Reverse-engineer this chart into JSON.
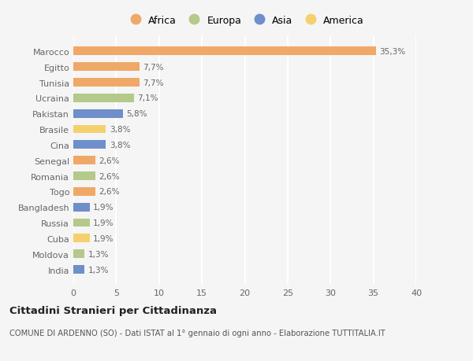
{
  "countries": [
    "Marocco",
    "Egitto",
    "Tunisia",
    "Ucraina",
    "Pakistan",
    "Brasile",
    "Cina",
    "Senegal",
    "Romania",
    "Togo",
    "Bangladesh",
    "Russia",
    "Cuba",
    "Moldova",
    "India"
  ],
  "values": [
    35.3,
    7.7,
    7.7,
    7.1,
    5.8,
    3.8,
    3.8,
    2.6,
    2.6,
    2.6,
    1.9,
    1.9,
    1.9,
    1.3,
    1.3
  ],
  "labels": [
    "35,3%",
    "7,7%",
    "7,7%",
    "7,1%",
    "5,8%",
    "3,8%",
    "3,8%",
    "2,6%",
    "2,6%",
    "2,6%",
    "1,9%",
    "1,9%",
    "1,9%",
    "1,3%",
    "1,3%"
  ],
  "continents": [
    "Africa",
    "Africa",
    "Africa",
    "Europa",
    "Asia",
    "America",
    "Asia",
    "Africa",
    "Europa",
    "Africa",
    "Asia",
    "Europa",
    "America",
    "Europa",
    "Asia"
  ],
  "colors": {
    "Africa": "#F0A868",
    "Europa": "#B5C98A",
    "Asia": "#6E8FC9",
    "America": "#F5D06E"
  },
  "legend_order": [
    "Africa",
    "Europa",
    "Asia",
    "America"
  ],
  "bg_color": "#f5f5f5",
  "title": "Cittadini Stranieri per Cittadinanza",
  "subtitle": "COMUNE DI ARDENNO (SO) - Dati ISTAT al 1° gennaio di ogni anno - Elaborazione TUTTITALIA.IT",
  "xlim": [
    0,
    40
  ],
  "xticks": [
    0,
    5,
    10,
    15,
    20,
    25,
    30,
    35,
    40
  ],
  "bar_height": 0.55,
  "label_fontsize": 7.5,
  "ytick_fontsize": 8,
  "xtick_fontsize": 8
}
